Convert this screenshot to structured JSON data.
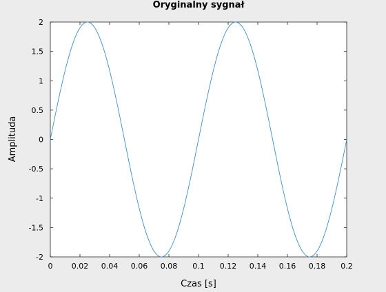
{
  "chart_data": {
    "type": "line",
    "title": "Oryginalny sygnał",
    "xlabel": "Czas [s]",
    "ylabel": "Amplituda",
    "xlim": [
      0,
      0.2
    ],
    "ylim": [
      -2,
      2
    ],
    "xticks": [
      "0",
      "0.02",
      "0.04",
      "0.06",
      "0.08",
      "0.1",
      "0.12",
      "0.14",
      "0.16",
      "0.18",
      "0.2"
    ],
    "yticks": [
      "-2",
      "-1.5",
      "-1",
      "-0.5",
      "0",
      "0.5",
      "1",
      "1.5",
      "2"
    ],
    "grid": false,
    "series": [
      {
        "color": "#3d8ec9",
        "x": [
          0,
          0.005,
          0.01,
          0.015,
          0.02,
          0.025,
          0.03,
          0.035,
          0.04,
          0.045,
          0.05,
          0.055,
          0.06,
          0.065,
          0.07,
          0.075,
          0.08,
          0.085,
          0.09,
          0.095,
          0.1,
          0.105,
          0.11,
          0.115,
          0.12,
          0.125,
          0.13,
          0.135,
          0.14,
          0.145,
          0.15,
          0.155,
          0.16,
          0.165,
          0.17,
          0.175,
          0.18,
          0.185,
          0.19,
          0.195,
          0.2
        ],
        "y": [
          0,
          0.618,
          1.176,
          1.618,
          1.902,
          2.0,
          1.902,
          1.618,
          1.176,
          0.618,
          0,
          -0.618,
          -1.176,
          -1.618,
          -1.902,
          -2.0,
          -1.902,
          -1.618,
          -1.176,
          -0.618,
          0,
          0.618,
          1.176,
          1.618,
          1.902,
          2.0,
          1.902,
          1.618,
          1.176,
          0.618,
          0,
          -0.618,
          -1.176,
          -1.618,
          -1.902,
          -2.0,
          -1.902,
          -1.618,
          -1.176,
          -0.618,
          0
        ]
      }
    ]
  }
}
